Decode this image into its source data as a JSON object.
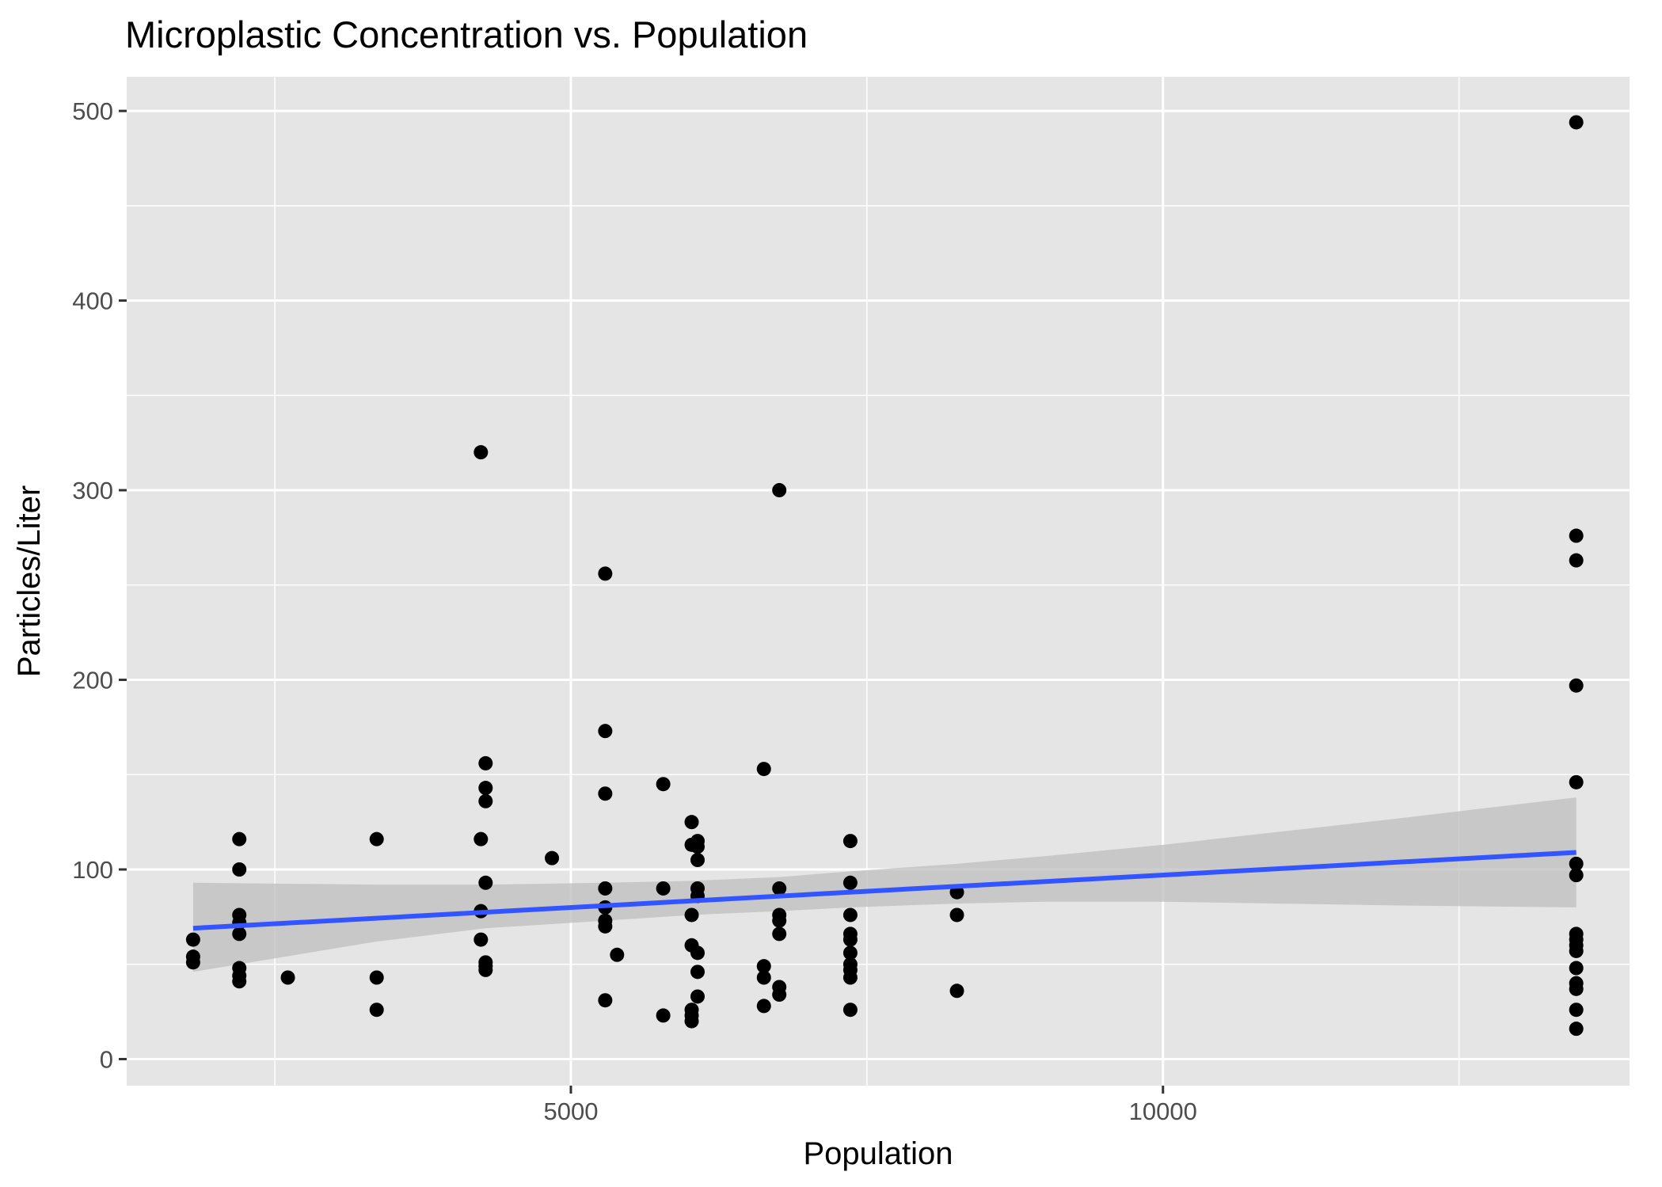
{
  "chart_data": {
    "type": "scatter",
    "title": "Microplastic Concentration vs. Population",
    "xlabel": "Population",
    "ylabel": "Particles/Liter",
    "xlim": [
      1249,
      13940
    ],
    "ylim": [
      -14,
      518
    ],
    "x_ticks": [
      5000,
      10000
    ],
    "x_tick_labels": [
      "5000",
      "10000"
    ],
    "x_minor_ticks": [
      2500,
      7500,
      12500
    ],
    "y_ticks": [
      0,
      100,
      200,
      300,
      400,
      500
    ],
    "y_tick_labels": [
      "0",
      "100",
      "200",
      "300",
      "400",
      "500"
    ],
    "y_minor_ticks": [
      50,
      150,
      250,
      350,
      450
    ],
    "grid": true,
    "legend": "none",
    "colors": {
      "panel_background": "#e5e5e5",
      "grid": "#ffffff",
      "points": "#000000",
      "trend_line": "#3355ff",
      "confidence_band": "#bdbdbd"
    },
    "points": [
      {
        "x": 1810,
        "y": 63
      },
      {
        "x": 1810,
        "y": 54
      },
      {
        "x": 1810,
        "y": 51
      },
      {
        "x": 2200,
        "y": 116
      },
      {
        "x": 2200,
        "y": 100
      },
      {
        "x": 2200,
        "y": 76
      },
      {
        "x": 2200,
        "y": 72
      },
      {
        "x": 2200,
        "y": 66
      },
      {
        "x": 2200,
        "y": 48
      },
      {
        "x": 2200,
        "y": 44
      },
      {
        "x": 2200,
        "y": 41
      },
      {
        "x": 2610,
        "y": 43
      },
      {
        "x": 3360,
        "y": 116
      },
      {
        "x": 3360,
        "y": 43
      },
      {
        "x": 3360,
        "y": 26
      },
      {
        "x": 4240,
        "y": 320
      },
      {
        "x": 4240,
        "y": 116
      },
      {
        "x": 4240,
        "y": 78
      },
      {
        "x": 4240,
        "y": 63
      },
      {
        "x": 4280,
        "y": 156
      },
      {
        "x": 4280,
        "y": 143
      },
      {
        "x": 4280,
        "y": 136
      },
      {
        "x": 4280,
        "y": 93
      },
      {
        "x": 4280,
        "y": 51
      },
      {
        "x": 4280,
        "y": 49
      },
      {
        "x": 4280,
        "y": 47
      },
      {
        "x": 4840,
        "y": 106
      },
      {
        "x": 5290,
        "y": 256
      },
      {
        "x": 5290,
        "y": 173
      },
      {
        "x": 5290,
        "y": 140
      },
      {
        "x": 5290,
        "y": 90
      },
      {
        "x": 5290,
        "y": 80
      },
      {
        "x": 5290,
        "y": 73
      },
      {
        "x": 5290,
        "y": 70
      },
      {
        "x": 5290,
        "y": 31
      },
      {
        "x": 5390,
        "y": 55
      },
      {
        "x": 5780,
        "y": 145
      },
      {
        "x": 5780,
        "y": 90
      },
      {
        "x": 5780,
        "y": 23
      },
      {
        "x": 6020,
        "y": 125
      },
      {
        "x": 6020,
        "y": 113
      },
      {
        "x": 6020,
        "y": 76
      },
      {
        "x": 6020,
        "y": 60
      },
      {
        "x": 6020,
        "y": 26
      },
      {
        "x": 6020,
        "y": 23
      },
      {
        "x": 6020,
        "y": 20
      },
      {
        "x": 6070,
        "y": 115
      },
      {
        "x": 6070,
        "y": 112
      },
      {
        "x": 6070,
        "y": 105
      },
      {
        "x": 6070,
        "y": 90
      },
      {
        "x": 6070,
        "y": 86
      },
      {
        "x": 6070,
        "y": 56
      },
      {
        "x": 6070,
        "y": 46
      },
      {
        "x": 6070,
        "y": 33
      },
      {
        "x": 6630,
        "y": 153
      },
      {
        "x": 6630,
        "y": 49
      },
      {
        "x": 6630,
        "y": 43
      },
      {
        "x": 6630,
        "y": 28
      },
      {
        "x": 6760,
        "y": 300
      },
      {
        "x": 6760,
        "y": 90
      },
      {
        "x": 6760,
        "y": 76
      },
      {
        "x": 6760,
        "y": 73
      },
      {
        "x": 6760,
        "y": 66
      },
      {
        "x": 6760,
        "y": 38
      },
      {
        "x": 6760,
        "y": 34
      },
      {
        "x": 7360,
        "y": 115
      },
      {
        "x": 7360,
        "y": 93
      },
      {
        "x": 7360,
        "y": 76
      },
      {
        "x": 7360,
        "y": 66
      },
      {
        "x": 7360,
        "y": 63
      },
      {
        "x": 7360,
        "y": 56
      },
      {
        "x": 7360,
        "y": 50
      },
      {
        "x": 7360,
        "y": 47
      },
      {
        "x": 7360,
        "y": 43
      },
      {
        "x": 7360,
        "y": 26
      },
      {
        "x": 8260,
        "y": 88
      },
      {
        "x": 8260,
        "y": 76
      },
      {
        "x": 8260,
        "y": 36
      },
      {
        "x": 13490,
        "y": 494
      },
      {
        "x": 13490,
        "y": 276
      },
      {
        "x": 13490,
        "y": 263
      },
      {
        "x": 13490,
        "y": 197
      },
      {
        "x": 13490,
        "y": 146
      },
      {
        "x": 13490,
        "y": 103
      },
      {
        "x": 13490,
        "y": 97
      },
      {
        "x": 13490,
        "y": 66
      },
      {
        "x": 13490,
        "y": 63
      },
      {
        "x": 13490,
        "y": 60
      },
      {
        "x": 13490,
        "y": 57
      },
      {
        "x": 13490,
        "y": 48
      },
      {
        "x": 13490,
        "y": 40
      },
      {
        "x": 13490,
        "y": 37
      },
      {
        "x": 13490,
        "y": 26
      },
      {
        "x": 13490,
        "y": 16
      }
    ],
    "trend_line": {
      "x": [
        1810,
        13490
      ],
      "y": [
        69,
        109
      ]
    },
    "confidence_band": {
      "x": [
        1810,
        3360,
        4280,
        5290,
        6020,
        6760,
        7360,
        8260,
        9000,
        10000,
        11000,
        12000,
        13490
      ],
      "lower": [
        46,
        62,
        69,
        73,
        76,
        78,
        80,
        82,
        83,
        83,
        82,
        81,
        80
      ],
      "upper": [
        93,
        92,
        92,
        93,
        94,
        96,
        99,
        103,
        107,
        113,
        120,
        127,
        138
      ]
    }
  }
}
